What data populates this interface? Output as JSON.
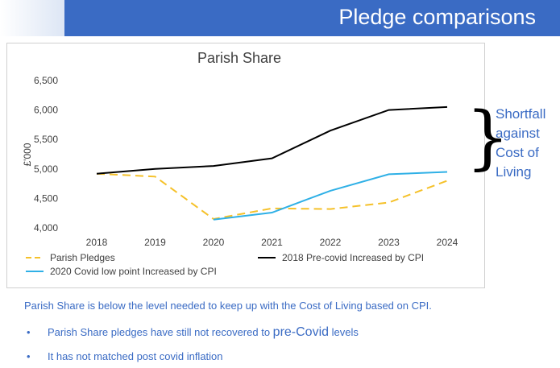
{
  "header": {
    "title": "Pledge comparisons",
    "color": "#3a6bc4"
  },
  "chart_data": {
    "type": "line",
    "title": "Parish Share",
    "ylabel": "£'000",
    "xlabel": "",
    "categories": [
      "2018",
      "2019",
      "2020",
      "2021",
      "2022",
      "2023",
      "2024"
    ],
    "ylim": [
      4000,
      6500
    ],
    "yticks": [
      4000,
      4500,
      5000,
      5500,
      6000,
      6500
    ],
    "ytick_labels": [
      "4,000",
      "4,500",
      "5,000",
      "5,500",
      "6,000",
      "6,500"
    ],
    "grid": false,
    "legend_position": "bottom",
    "series": [
      {
        "name": "Parish Pledges",
        "values": [
          4920,
          4870,
          4150,
          4330,
          4320,
          4430,
          4800
        ],
        "color": "#f5c12a",
        "style": "dashed"
      },
      {
        "name": "2018 Pre-covid Increased by CPI",
        "values": [
          4920,
          5000,
          5050,
          5180,
          5650,
          6000,
          6050
        ],
        "color": "#000000",
        "style": "solid"
      },
      {
        "name": "2020 Covid low point Increased by CPI",
        "values": [
          null,
          null,
          4140,
          4260,
          4630,
          4910,
          4950
        ],
        "color": "#2fb0e6",
        "style": "solid"
      }
    ]
  },
  "annotation": {
    "lines": [
      "Shortfall",
      "against",
      "Cost of",
      "Living"
    ]
  },
  "summary": "Parish Share is below the level needed to keep up with the Cost of Living based on CPI.",
  "bullets": [
    {
      "marker": "•",
      "text_before": "Parish Share pledges have still not recovered to ",
      "text_big": "pre-Covid",
      "text_after": " levels"
    },
    {
      "marker": "•",
      "text": "It has not matched post covid inflation"
    }
  ]
}
